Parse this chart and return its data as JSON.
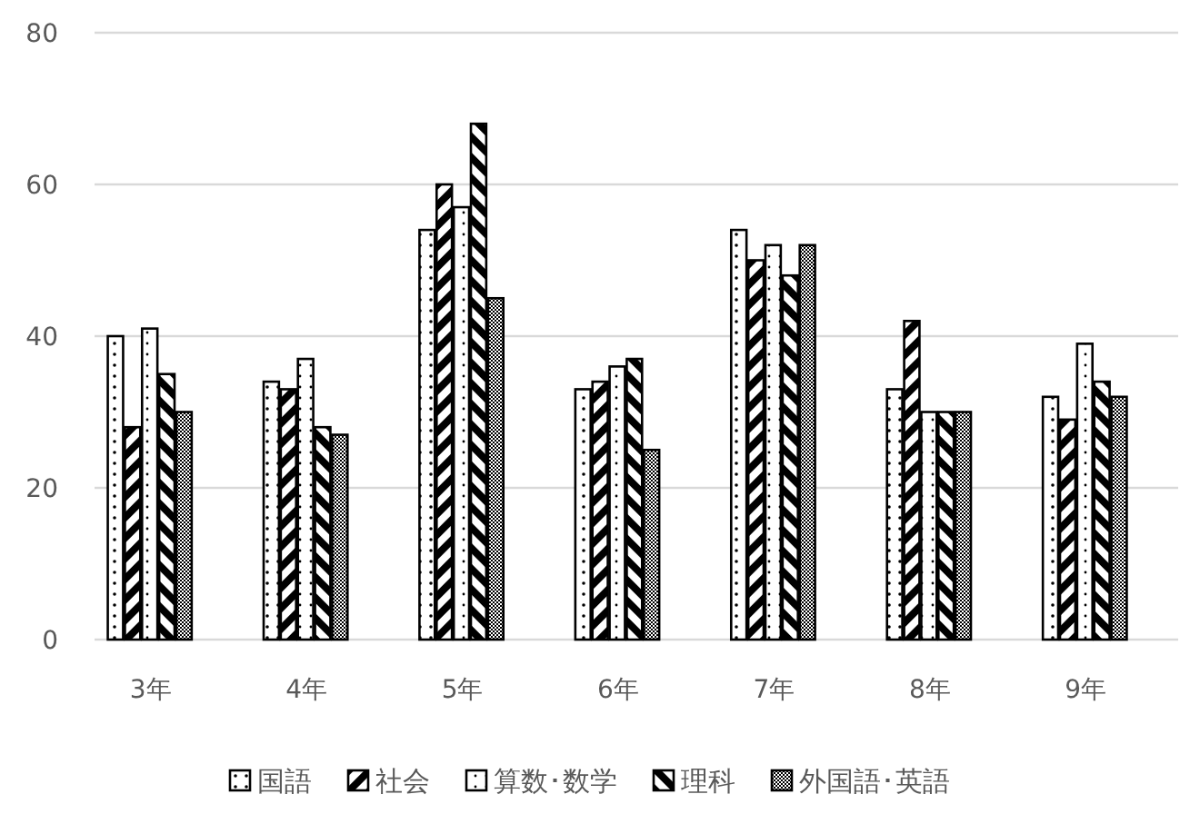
{
  "chart_data": {
    "type": "bar",
    "categories": [
      "3年",
      "4年",
      "5年",
      "6年",
      "7年",
      "8年",
      "9年"
    ],
    "series": [
      {
        "name": "国語",
        "color": "#000000",
        "values": [
          40,
          34,
          54,
          33,
          54,
          33,
          32
        ]
      },
      {
        "name": "社会",
        "color": "#000000",
        "values": [
          28,
          33,
          60,
          34,
          50,
          42,
          29
        ]
      },
      {
        "name": "算数･数学",
        "color": "#000000",
        "values": [
          41,
          37,
          57,
          36,
          52,
          30,
          39
        ]
      },
      {
        "name": "理科",
        "color": "#000000",
        "values": [
          35,
          28,
          68,
          37,
          48,
          30,
          34
        ]
      },
      {
        "name": "外国語･英語",
        "color": "#000000",
        "values": [
          30,
          27,
          45,
          25,
          52,
          30,
          32
        ]
      }
    ],
    "ylim": [
      0,
      80
    ],
    "yticks": [
      0,
      20,
      40,
      60,
      80
    ],
    "grid": "y",
    "legend": "bottom"
  }
}
